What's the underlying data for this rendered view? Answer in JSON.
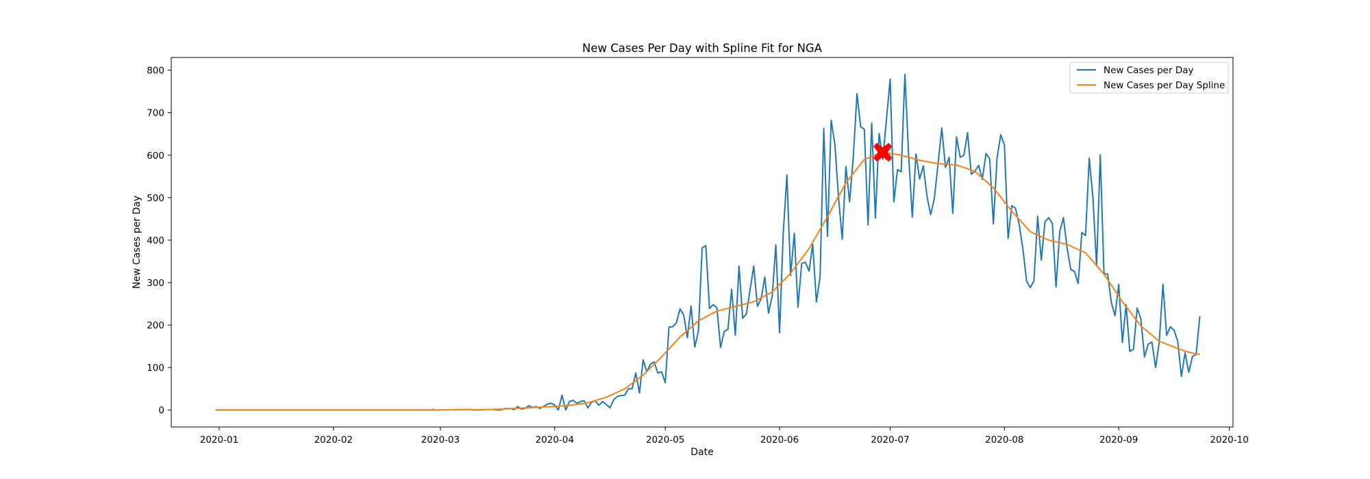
{
  "chart_data": {
    "type": "line",
    "title": "New Cases Per Day with Spline Fit for NGA",
    "xlabel": "Date",
    "ylabel": "New Cases per Day",
    "xlim": [
      "2019-12-19",
      "2020-10-02"
    ],
    "ylim": [
      -40,
      830
    ],
    "x_ticks": [
      "2020-01-01",
      "2020-02-01",
      "2020-03-01",
      "2020-04-01",
      "2020-05-01",
      "2020-06-01",
      "2020-07-01",
      "2020-08-01",
      "2020-09-01",
      "2020-10-01"
    ],
    "x_tick_labels": [
      "2020-01",
      "2020-02",
      "2020-03",
      "2020-04",
      "2020-05",
      "2020-06",
      "2020-07",
      "2020-08",
      "2020-09",
      "2020-10"
    ],
    "y_ticks": [
      0,
      100,
      200,
      300,
      400,
      500,
      600,
      700,
      800
    ],
    "y_tick_labels": [
      "0",
      "100",
      "200",
      "300",
      "400",
      "500",
      "600",
      "700",
      "800"
    ],
    "grid": false,
    "legend": "top-right",
    "series": [
      {
        "name": "New Cases per Day",
        "color": "#1f77b4",
        "points": [
          [
            "2019-12-31",
            0
          ],
          [
            "2020-01-15",
            0
          ],
          [
            "2020-02-01",
            0
          ],
          [
            "2020-02-15",
            0
          ],
          [
            "2020-02-27",
            0
          ],
          [
            "2020-02-28",
            1
          ],
          [
            "2020-02-29",
            0
          ],
          [
            "2020-03-09",
            1
          ],
          [
            "2020-03-10",
            0
          ],
          [
            "2020-03-15",
            1
          ],
          [
            "2020-03-17",
            0
          ],
          [
            "2020-03-18",
            2
          ],
          [
            "2020-03-19",
            4
          ],
          [
            "2020-03-20",
            3
          ],
          [
            "2020-03-21",
            1
          ],
          [
            "2020-03-22",
            8
          ],
          [
            "2020-03-23",
            2
          ],
          [
            "2020-03-24",
            4
          ],
          [
            "2020-03-25",
            10
          ],
          [
            "2020-03-26",
            6
          ],
          [
            "2020-03-27",
            8
          ],
          [
            "2020-03-28",
            4
          ],
          [
            "2020-03-29",
            8
          ],
          [
            "2020-03-30",
            14
          ],
          [
            "2020-03-31",
            16
          ],
          [
            "2020-04-01",
            12
          ],
          [
            "2020-04-02",
            0
          ],
          [
            "2020-04-03",
            35
          ],
          [
            "2020-04-04",
            0
          ],
          [
            "2020-04-05",
            20
          ],
          [
            "2020-04-06",
            23
          ],
          [
            "2020-04-07",
            16
          ],
          [
            "2020-04-08",
            20
          ],
          [
            "2020-04-09",
            22
          ],
          [
            "2020-04-10",
            5
          ],
          [
            "2020-04-11",
            18
          ],
          [
            "2020-04-12",
            22
          ],
          [
            "2020-04-13",
            11
          ],
          [
            "2020-04-14",
            20
          ],
          [
            "2020-04-15",
            13
          ],
          [
            "2020-04-16",
            5
          ],
          [
            "2020-04-17",
            24
          ],
          [
            "2020-04-18",
            32
          ],
          [
            "2020-04-19",
            34
          ],
          [
            "2020-04-20",
            35
          ],
          [
            "2020-04-21",
            50
          ],
          [
            "2020-04-22",
            50
          ],
          [
            "2020-04-23",
            87
          ],
          [
            "2020-04-24",
            40
          ],
          [
            "2020-04-25",
            118
          ],
          [
            "2020-04-26",
            90
          ],
          [
            "2020-04-27",
            108
          ],
          [
            "2020-04-28",
            113
          ],
          [
            "2020-04-29",
            87
          ],
          [
            "2020-04-30",
            90
          ],
          [
            "2020-05-01",
            64
          ],
          [
            "2020-05-02",
            195
          ],
          [
            "2020-05-03",
            196
          ],
          [
            "2020-05-04",
            205
          ],
          [
            "2020-05-05",
            238
          ],
          [
            "2020-05-06",
            224
          ],
          [
            "2020-05-07",
            170
          ],
          [
            "2020-05-08",
            245
          ],
          [
            "2020-05-09",
            148
          ],
          [
            "2020-05-10",
            186
          ],
          [
            "2020-05-11",
            382
          ],
          [
            "2020-05-12",
            387
          ],
          [
            "2020-05-13",
            239
          ],
          [
            "2020-05-14",
            248
          ],
          [
            "2020-05-15",
            241
          ],
          [
            "2020-05-16",
            147
          ],
          [
            "2020-05-17",
            185
          ],
          [
            "2020-05-18",
            190
          ],
          [
            "2020-05-19",
            284
          ],
          [
            "2020-05-20",
            176
          ],
          [
            "2020-05-21",
            339
          ],
          [
            "2020-05-22",
            216
          ],
          [
            "2020-05-23",
            226
          ],
          [
            "2020-05-24",
            283
          ],
          [
            "2020-05-25",
            339
          ],
          [
            "2020-05-26",
            244
          ],
          [
            "2020-05-27",
            262
          ],
          [
            "2020-05-28",
            313
          ],
          [
            "2020-05-29",
            228
          ],
          [
            "2020-05-30",
            268
          ],
          [
            "2020-05-31",
            389
          ],
          [
            "2020-06-01",
            182
          ],
          [
            "2020-06-02",
            416
          ],
          [
            "2020-06-03",
            553
          ],
          [
            "2020-06-04",
            317
          ],
          [
            "2020-06-05",
            416
          ],
          [
            "2020-06-06",
            242
          ],
          [
            "2020-06-07",
            345
          ],
          [
            "2020-06-08",
            348
          ],
          [
            "2020-06-09",
            327
          ],
          [
            "2020-06-10",
            390
          ],
          [
            "2020-06-11",
            254
          ],
          [
            "2020-06-12",
            315
          ],
          [
            "2020-06-13",
            663
          ],
          [
            "2020-06-14",
            409
          ],
          [
            "2020-06-15",
            682
          ],
          [
            "2020-06-16",
            626
          ],
          [
            "2020-06-17",
            501
          ],
          [
            "2020-06-18",
            402
          ],
          [
            "2020-06-19",
            573
          ],
          [
            "2020-06-20",
            490
          ],
          [
            "2020-06-21",
            595
          ],
          [
            "2020-06-22",
            745
          ],
          [
            "2020-06-23",
            667
          ],
          [
            "2020-06-24",
            661
          ],
          [
            "2020-06-25",
            436
          ],
          [
            "2020-06-26",
            676
          ],
          [
            "2020-06-27",
            452
          ],
          [
            "2020-06-28",
            651
          ],
          [
            "2020-06-29",
            590
          ],
          [
            "2020-06-30",
            684
          ],
          [
            "2020-07-01",
            779
          ],
          [
            "2020-07-02",
            490
          ],
          [
            "2020-07-03",
            566
          ],
          [
            "2020-07-04",
            561
          ],
          [
            "2020-07-05",
            790
          ],
          [
            "2020-07-06",
            603
          ],
          [
            "2020-07-07",
            454
          ],
          [
            "2020-07-08",
            603
          ],
          [
            "2020-07-09",
            544
          ],
          [
            "2020-07-10",
            575
          ],
          [
            "2020-07-11",
            503
          ],
          [
            "2020-07-12",
            460
          ],
          [
            "2020-07-13",
            499
          ],
          [
            "2020-07-14",
            580
          ],
          [
            "2020-07-15",
            664
          ],
          [
            "2020-07-16",
            571
          ],
          [
            "2020-07-17",
            595
          ],
          [
            "2020-07-18",
            463
          ],
          [
            "2020-07-19",
            643
          ],
          [
            "2020-07-20",
            595
          ],
          [
            "2020-07-21",
            600
          ],
          [
            "2020-07-22",
            653
          ],
          [
            "2020-07-23",
            555
          ],
          [
            "2020-07-24",
            562
          ],
          [
            "2020-07-25",
            576
          ],
          [
            "2020-07-26",
            543
          ],
          [
            "2020-07-27",
            604
          ],
          [
            "2020-07-28",
            591
          ],
          [
            "2020-07-29",
            438
          ],
          [
            "2020-07-30",
            594
          ],
          [
            "2020-07-31",
            648
          ],
          [
            "2020-08-01",
            624
          ],
          [
            "2020-08-02",
            404
          ],
          [
            "2020-08-03",
            481
          ],
          [
            "2020-08-04",
            475
          ],
          [
            "2020-08-05",
            437
          ],
          [
            "2020-08-06",
            380
          ],
          [
            "2020-08-07",
            304
          ],
          [
            "2020-08-08",
            288
          ],
          [
            "2020-08-09",
            304
          ],
          [
            "2020-08-10",
            456
          ],
          [
            "2020-08-11",
            353
          ],
          [
            "2020-08-12",
            443
          ],
          [
            "2020-08-13",
            453
          ],
          [
            "2020-08-14",
            439
          ],
          [
            "2020-08-15",
            290
          ],
          [
            "2020-08-16",
            420
          ],
          [
            "2020-08-17",
            453
          ],
          [
            "2020-08-18",
            381
          ],
          [
            "2020-08-19",
            331
          ],
          [
            "2020-08-20",
            326
          ],
          [
            "2020-08-21",
            298
          ],
          [
            "2020-08-22",
            418
          ],
          [
            "2020-08-23",
            411
          ],
          [
            "2020-08-24",
            593
          ],
          [
            "2020-08-25",
            500
          ],
          [
            "2020-08-26",
            339
          ],
          [
            "2020-08-27",
            601
          ],
          [
            "2020-08-28",
            321
          ],
          [
            "2020-08-29",
            320
          ],
          [
            "2020-08-30",
            253
          ],
          [
            "2020-08-31",
            222
          ],
          [
            "2020-09-01",
            296
          ],
          [
            "2020-09-02",
            159
          ],
          [
            "2020-09-03",
            248
          ],
          [
            "2020-09-04",
            138
          ],
          [
            "2020-09-05",
            143
          ],
          [
            "2020-09-06",
            240
          ],
          [
            "2020-09-07",
            214
          ],
          [
            "2020-09-08",
            125
          ],
          [
            "2020-09-09",
            155
          ],
          [
            "2020-09-10",
            160
          ],
          [
            "2020-09-11",
            100
          ],
          [
            "2020-09-12",
            160
          ],
          [
            "2020-09-13",
            296
          ],
          [
            "2020-09-14",
            176
          ],
          [
            "2020-09-15",
            196
          ],
          [
            "2020-09-16",
            188
          ],
          [
            "2020-09-17",
            162
          ],
          [
            "2020-09-18",
            79
          ],
          [
            "2020-09-19",
            135
          ],
          [
            "2020-09-20",
            89
          ],
          [
            "2020-09-21",
            126
          ],
          [
            "2020-09-22",
            131
          ],
          [
            "2020-09-23",
            221
          ]
        ]
      },
      {
        "name": "New Cases per Day Spline",
        "color": "#ff7f0e",
        "points": [
          [
            "2019-12-31",
            0
          ],
          [
            "2020-01-31",
            0
          ],
          [
            "2020-02-29",
            0
          ],
          [
            "2020-03-15",
            1
          ],
          [
            "2020-03-22",
            4
          ],
          [
            "2020-03-31",
            8
          ],
          [
            "2020-04-05",
            11
          ],
          [
            "2020-04-10",
            17
          ],
          [
            "2020-04-15",
            30
          ],
          [
            "2020-04-20",
            50
          ],
          [
            "2020-04-25",
            82
          ],
          [
            "2020-04-30",
            125
          ],
          [
            "2020-05-05",
            172
          ],
          [
            "2020-05-10",
            210
          ],
          [
            "2020-05-15",
            233
          ],
          [
            "2020-05-20",
            244
          ],
          [
            "2020-05-25",
            255
          ],
          [
            "2020-05-30",
            278
          ],
          [
            "2020-06-04",
            322
          ],
          [
            "2020-06-09",
            380
          ],
          [
            "2020-06-14",
            455
          ],
          [
            "2020-06-19",
            535
          ],
          [
            "2020-06-24",
            590
          ],
          [
            "2020-06-29",
            607
          ],
          [
            "2020-07-04",
            600
          ],
          [
            "2020-07-09",
            588
          ],
          [
            "2020-07-14",
            580
          ],
          [
            "2020-07-19",
            577
          ],
          [
            "2020-07-24",
            562
          ],
          [
            "2020-07-29",
            523
          ],
          [
            "2020-08-03",
            468
          ],
          [
            "2020-08-08",
            420
          ],
          [
            "2020-08-13",
            400
          ],
          [
            "2020-08-18",
            390
          ],
          [
            "2020-08-23",
            370
          ],
          [
            "2020-08-28",
            320
          ],
          [
            "2020-09-02",
            255
          ],
          [
            "2020-09-07",
            198
          ],
          [
            "2020-09-12",
            162
          ],
          [
            "2020-09-17",
            145
          ],
          [
            "2020-09-20",
            136
          ],
          [
            "2020-09-23",
            131
          ]
        ]
      }
    ],
    "marker": {
      "x": "2020-06-29",
      "y": 607,
      "symbol": "X",
      "color": "#ff0000"
    }
  }
}
